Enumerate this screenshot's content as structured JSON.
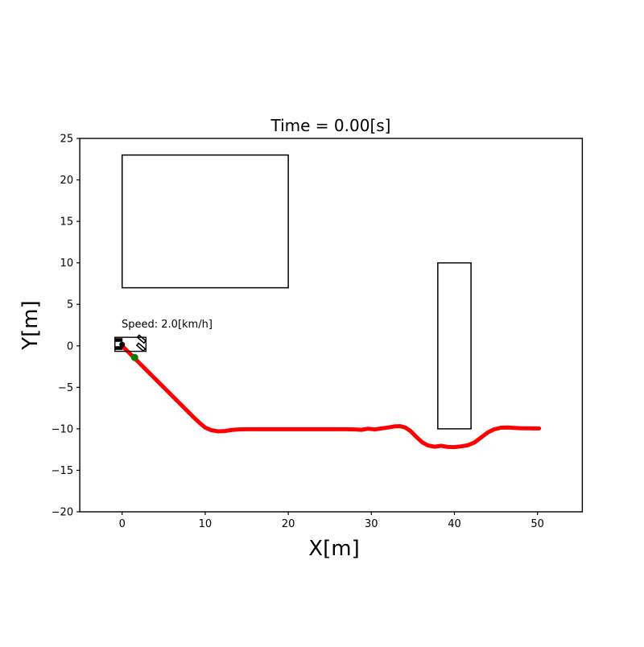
{
  "figure": {
    "title": "Time = 0.00[s]",
    "xlabel": "X[m]",
    "ylabel": "Y[m]",
    "background": "#ffffff"
  },
  "annotation": {
    "speed_label": "Speed: 2.0[km/h]"
  },
  "colors": {
    "trajectory": "#ff0000",
    "target_point": "#008000",
    "obstacle_edge": "#000000",
    "vehicle": "#000000",
    "axes": "#000000"
  },
  "chart_data": {
    "type": "line",
    "title": "Time = 0.00[s]",
    "xlabel": "X[m]",
    "ylabel": "Y[m]",
    "xlim": [
      -5.1,
      55.4
    ],
    "ylim": [
      -20,
      25
    ],
    "xticks": [
      0,
      10,
      20,
      30,
      40,
      50
    ],
    "yticks": [
      -20,
      -15,
      -10,
      -5,
      0,
      5,
      10,
      15,
      20,
      25
    ],
    "grid": false,
    "legend": "none",
    "obstacles": [
      {
        "name": "obstacle-1",
        "x": [
          0,
          20
        ],
        "y": [
          7,
          23
        ]
      },
      {
        "name": "obstacle-2",
        "x": [
          38,
          42
        ],
        "y": [
          -10,
          10
        ]
      }
    ],
    "series": [
      {
        "name": "trajectory",
        "type": "line",
        "color": "#ff0000",
        "linewidth": 5,
        "points": [
          [
            0,
            0
          ],
          [
            0.7,
            -0.7
          ],
          [
            1.5,
            -1.5
          ],
          [
            2.3,
            -2.3
          ],
          [
            3.1,
            -3.1
          ],
          [
            3.9,
            -3.9
          ],
          [
            4.7,
            -4.7
          ],
          [
            5.5,
            -5.5
          ],
          [
            6.3,
            -6.3
          ],
          [
            7.1,
            -7.1
          ],
          [
            7.9,
            -7.9
          ],
          [
            8.7,
            -8.7
          ],
          [
            9.4,
            -9.35
          ],
          [
            10.0,
            -9.85
          ],
          [
            10.7,
            -10.15
          ],
          [
            11.5,
            -10.3
          ],
          [
            12.3,
            -10.28
          ],
          [
            13.1,
            -10.15
          ],
          [
            14,
            -10.07
          ],
          [
            15,
            -10.05
          ],
          [
            16,
            -10.05
          ],
          [
            17,
            -10.05
          ],
          [
            18,
            -10.05
          ],
          [
            19,
            -10.05
          ],
          [
            20,
            -10.05
          ],
          [
            21,
            -10.05
          ],
          [
            22,
            -10.05
          ],
          [
            23,
            -10.05
          ],
          [
            24,
            -10.05
          ],
          [
            25,
            -10.05
          ],
          [
            26,
            -10.05
          ],
          [
            27,
            -10.05
          ],
          [
            28,
            -10.07
          ],
          [
            28.8,
            -10.12
          ],
          [
            29.6,
            -9.98
          ],
          [
            30.4,
            -10.08
          ],
          [
            31.2,
            -9.95
          ],
          [
            32.0,
            -9.85
          ],
          [
            32.8,
            -9.7
          ],
          [
            33.5,
            -9.68
          ],
          [
            34.1,
            -9.85
          ],
          [
            34.7,
            -10.25
          ],
          [
            35.4,
            -10.95
          ],
          [
            36.1,
            -11.6
          ],
          [
            36.8,
            -12.0
          ],
          [
            37.6,
            -12.15
          ],
          [
            38.4,
            -12.05
          ],
          [
            39.2,
            -12.18
          ],
          [
            40.0,
            -12.2
          ],
          [
            40.8,
            -12.12
          ],
          [
            41.6,
            -11.98
          ],
          [
            42.4,
            -11.65
          ],
          [
            43.2,
            -11.05
          ],
          [
            44.0,
            -10.45
          ],
          [
            44.8,
            -10.05
          ],
          [
            45.6,
            -9.87
          ],
          [
            46.4,
            -9.84
          ],
          [
            47.2,
            -9.88
          ],
          [
            48.0,
            -9.92
          ],
          [
            48.8,
            -9.94
          ],
          [
            49.6,
            -9.95
          ],
          [
            50.2,
            -9.95
          ]
        ]
      },
      {
        "name": "target-point",
        "type": "scatter",
        "color": "#008000",
        "markersize": 9,
        "points": [
          [
            1.5,
            -1.4
          ]
        ]
      }
    ],
    "vehicle": {
      "position": [
        0,
        0
      ],
      "speed_kmh": 2.0,
      "annotation": "Speed: 2.0[km/h]",
      "annotation_xy": [
        0,
        2.55
      ],
      "body": {
        "x": [
          -0.87,
          2.87
        ],
        "y": [
          -0.66,
          1.03
        ]
      },
      "rear_wheels": [
        {
          "x": [
            -0.75,
            0.0
          ],
          "y": [
            0.53,
            0.88
          ]
        },
        {
          "x": [
            -0.75,
            0.0
          ],
          "y": [
            -0.44,
            -0.09
          ]
        }
      ],
      "front_wheels": [
        {
          "cx": 2.34,
          "cy": 0.82,
          "len": 1.05,
          "wid": 0.34,
          "steer_deg": -41
        },
        {
          "cx": 2.27,
          "cy": -0.15,
          "len": 1.05,
          "wid": 0.34,
          "steer_deg": -41
        }
      ],
      "rear_axle_dot": [
        0,
        0.15
      ],
      "color": "#000000"
    }
  }
}
